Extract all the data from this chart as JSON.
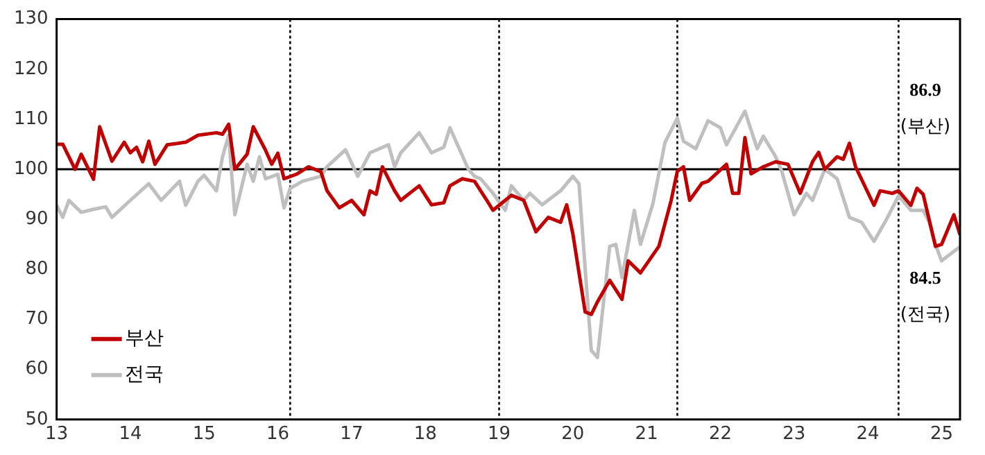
{
  "chart_data": {
    "type": "line",
    "ylim": [
      50,
      130
    ],
    "yticks": [
      50,
      60,
      70,
      80,
      90,
      100,
      110,
      120,
      130
    ],
    "xlim": [
      "2013-01",
      "2025-04"
    ],
    "xticks": [
      {
        "value": "2013",
        "label": "13"
      },
      {
        "value": "2014",
        "label": "14"
      },
      {
        "value": "2015",
        "label": "15"
      },
      {
        "value": "2016",
        "label": "16"
      },
      {
        "value": "2017",
        "label": "17"
      },
      {
        "value": "2018",
        "label": "18"
      },
      {
        "value": "2019",
        "label": "19"
      },
      {
        "value": "2020",
        "label": "20"
      },
      {
        "value": "2021",
        "label": "21"
      },
      {
        "value": "2022",
        "label": "22"
      },
      {
        "value": "2023",
        "label": "23"
      },
      {
        "value": "2024",
        "label": "24"
      },
      {
        "value": "2025",
        "label": "25"
      }
    ],
    "grid": false,
    "legend": "bottom left",
    "line_style": "solid",
    "series": [
      {
        "name": "부산",
        "color": "#c00000",
        "x": [
          "2013-01",
          "2013-02",
          "2013-04",
          "2013-05",
          "2013-07",
          "2013-08",
          "2013-10",
          "2013-12",
          "2014-01",
          "2014-02",
          "2014-03",
          "2014-04",
          "2014-05",
          "2014-07",
          "2014-10",
          "2014-12",
          "2015-03",
          "2015-04",
          "2015-05",
          "2015-06",
          "2015-08",
          "2015-09",
          "2015-11",
          "2015-12",
          "2016-01",
          "2016-02",
          "2016-04",
          "2016-06",
          "2016-08",
          "2016-09",
          "2016-11",
          "2017-01",
          "2017-03",
          "2017-04",
          "2017-05",
          "2017-06",
          "2017-08",
          "2017-09",
          "2017-12",
          "2018-02",
          "2018-04",
          "2018-05",
          "2018-07",
          "2018-09",
          "2018-11",
          "2018-12",
          "2019-02",
          "2019-03",
          "2019-05",
          "2019-07",
          "2019-09",
          "2019-11",
          "2019-12",
          "2020-01",
          "2020-03",
          "2020-04",
          "2020-05",
          "2020-07",
          "2020-09",
          "2020-10",
          "2020-12",
          "2021-03",
          "2021-05",
          "2021-06",
          "2021-07",
          "2021-08",
          "2021-10",
          "2021-11",
          "2022-02",
          "2022-03",
          "2022-04",
          "2022-05",
          "2022-06",
          "2022-08",
          "2022-10",
          "2022-12",
          "2023-02",
          "2023-04",
          "2023-05",
          "2023-06",
          "2023-08",
          "2023-09",
          "2023-10",
          "2023-11",
          "2024-02",
          "2024-03",
          "2024-05",
          "2024-06",
          "2024-08",
          "2024-09",
          "2024-10",
          "2024-12",
          "2025-01",
          "2025-03",
          "2025-04"
        ],
        "values": [
          105,
          105,
          100,
          103,
          98,
          108.5,
          101.6,
          105.4,
          103.3,
          104.4,
          101.5,
          105.6,
          101,
          104.9,
          105.4,
          106.8,
          107.3,
          107,
          109,
          100,
          103,
          108.5,
          103.8,
          101,
          103.2,
          98.1,
          99,
          100.5,
          99.5,
          95.7,
          92.3,
          93.8,
          90.9,
          95.7,
          95,
          100.5,
          95.7,
          93.8,
          96.7,
          92.9,
          93.3,
          96.7,
          98.1,
          97.6,
          93.8,
          91.8,
          93.8,
          94.8,
          93.8,
          87.5,
          90.4,
          89.4,
          92.9,
          87.1,
          71.5,
          71,
          73.5,
          77.8,
          74,
          81.7,
          79.3,
          84.6,
          93.8,
          99.6,
          100.5,
          93.8,
          97.2,
          97.6,
          101,
          95.2,
          95.2,
          106.3,
          99.1,
          100.5,
          101.5,
          101,
          95.2,
          101.5,
          103.4,
          100,
          102.5,
          102,
          105.2,
          100.5,
          92.8,
          95.7,
          95.2,
          95.7,
          92.8,
          96.2,
          95,
          84.6,
          85,
          90.9,
          86.9
        ]
      },
      {
        "name": "전국",
        "color": "#bfbfbf",
        "x": [
          "2013-01",
          "2013-02",
          "2013-03",
          "2013-05",
          "2013-07",
          "2013-09",
          "2013-10",
          "2014-01",
          "2014-04",
          "2014-06",
          "2014-09",
          "2014-10",
          "2014-12",
          "2015-01",
          "2015-03",
          "2015-04",
          "2015-05",
          "2015-06",
          "2015-08",
          "2015-09",
          "2015-10",
          "2015-11",
          "2016-01",
          "2016-02",
          "2016-03",
          "2016-05",
          "2016-08",
          "2016-09",
          "2016-12",
          "2017-02",
          "2017-04",
          "2017-07",
          "2017-08",
          "2017-09",
          "2017-12",
          "2018-02",
          "2018-04",
          "2018-05",
          "2018-08",
          "2018-09",
          "2018-10",
          "2018-12",
          "2019-02",
          "2019-03",
          "2019-05",
          "2019-06",
          "2019-08",
          "2019-11",
          "2020-01",
          "2020-02",
          "2020-03",
          "2020-04",
          "2020-05",
          "2020-07",
          "2020-08",
          "2020-09",
          "2020-11",
          "2020-12",
          "2021-02",
          "2021-04",
          "2021-06",
          "2021-07",
          "2021-09",
          "2021-11",
          "2022-01",
          "2022-02",
          "2022-05",
          "2022-07",
          "2022-08",
          "2022-10",
          "2022-11",
          "2023-01",
          "2023-03",
          "2023-04",
          "2023-06",
          "2023-08",
          "2023-10",
          "2023-12",
          "2024-02",
          "2024-04",
          "2024-06",
          "2024-08",
          "2024-10",
          "2024-11",
          "2024-12",
          "2025-01",
          "2025-03",
          "2025-04"
        ],
        "values": [
          92.8,
          90.4,
          93.8,
          91.4,
          92,
          92.5,
          90.4,
          93.8,
          97.1,
          93.8,
          97.6,
          92.8,
          97.6,
          98.8,
          95.7,
          102.5,
          106.8,
          90.9,
          101,
          97.6,
          102.5,
          98.1,
          99,
          92.3,
          96.2,
          97.6,
          98.6,
          100.5,
          103.9,
          98.6,
          103.3,
          104.9,
          100.5,
          103.3,
          107.3,
          103.3,
          104.4,
          108.3,
          100,
          98.6,
          98.1,
          95.2,
          91.8,
          96.7,
          93.8,
          95.2,
          92.9,
          95.7,
          98.6,
          97.1,
          80.2,
          63.8,
          62.4,
          84.6,
          85,
          78.3,
          91.8,
          85,
          93,
          105.4,
          110.2,
          105.6,
          104.1,
          109.7,
          108.3,
          104.9,
          111.6,
          104.1,
          106.6,
          102.5,
          99.6,
          90.9,
          95.2,
          93.8,
          100,
          98.1,
          90.4,
          89.4,
          85.6,
          89.9,
          94.7,
          91.8,
          91.8,
          89.4,
          85,
          81.7,
          83.6,
          84.5
        ]
      }
    ],
    "ref_lines": [
      {
        "axis": "y",
        "value": 100,
        "color": "#000000",
        "line_style": "solid"
      },
      {
        "axis": "x",
        "value": "2016-03",
        "color": "#000000",
        "line_style": "dotted"
      },
      {
        "axis": "x",
        "value": "2019-01",
        "color": "#000000",
        "line_style": "dotted"
      },
      {
        "axis": "x",
        "value": "2021-06",
        "color": "#000000",
        "line_style": "dotted"
      },
      {
        "axis": "x",
        "value": "2024-06",
        "color": "#000000",
        "line_style": "dotted"
      }
    ],
    "annotations": [
      "86.9",
      "(부산)",
      "84.5",
      "(전국)"
    ]
  }
}
